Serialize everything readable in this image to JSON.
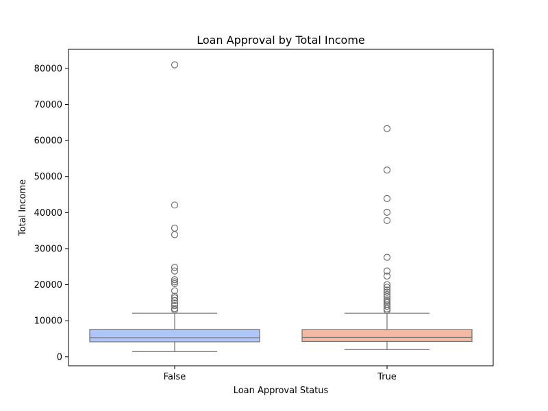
{
  "chart_data": {
    "type": "box",
    "title": "Loan Approval by Total Income",
    "xlabel": "Loan Approval Status",
    "ylabel": "Total Income",
    "ylim": [
      -2500,
      85300
    ],
    "yticks": [
      0,
      10000,
      20000,
      30000,
      40000,
      50000,
      60000,
      70000,
      80000
    ],
    "grid": false,
    "categories": [
      "False",
      "True"
    ],
    "colors": [
      "#aec6fa",
      "#f3b9a2"
    ],
    "edge_color": "#707070",
    "boxes": [
      {
        "category": "False",
        "whisker_low": 1450,
        "q1": 4150,
        "median": 5300,
        "q3": 7600,
        "whisker_high": 12100,
        "outliers": [
          81000,
          42100,
          35700,
          33900,
          24800,
          23800,
          21400,
          20800,
          20300,
          18300,
          16800,
          16300,
          15600,
          14800,
          14200,
          13400,
          13000
        ]
      },
      {
        "category": "True",
        "whisker_low": 2000,
        "q1": 4250,
        "median": 5400,
        "q3": 7550,
        "whisker_high": 12100,
        "outliers": [
          63300,
          51800,
          43900,
          40100,
          37800,
          27600,
          23800,
          22400,
          20000,
          19300,
          18500,
          17900,
          17300,
          16700,
          15800,
          15400,
          15000,
          14500,
          14000,
          13300,
          12900
        ]
      }
    ]
  }
}
